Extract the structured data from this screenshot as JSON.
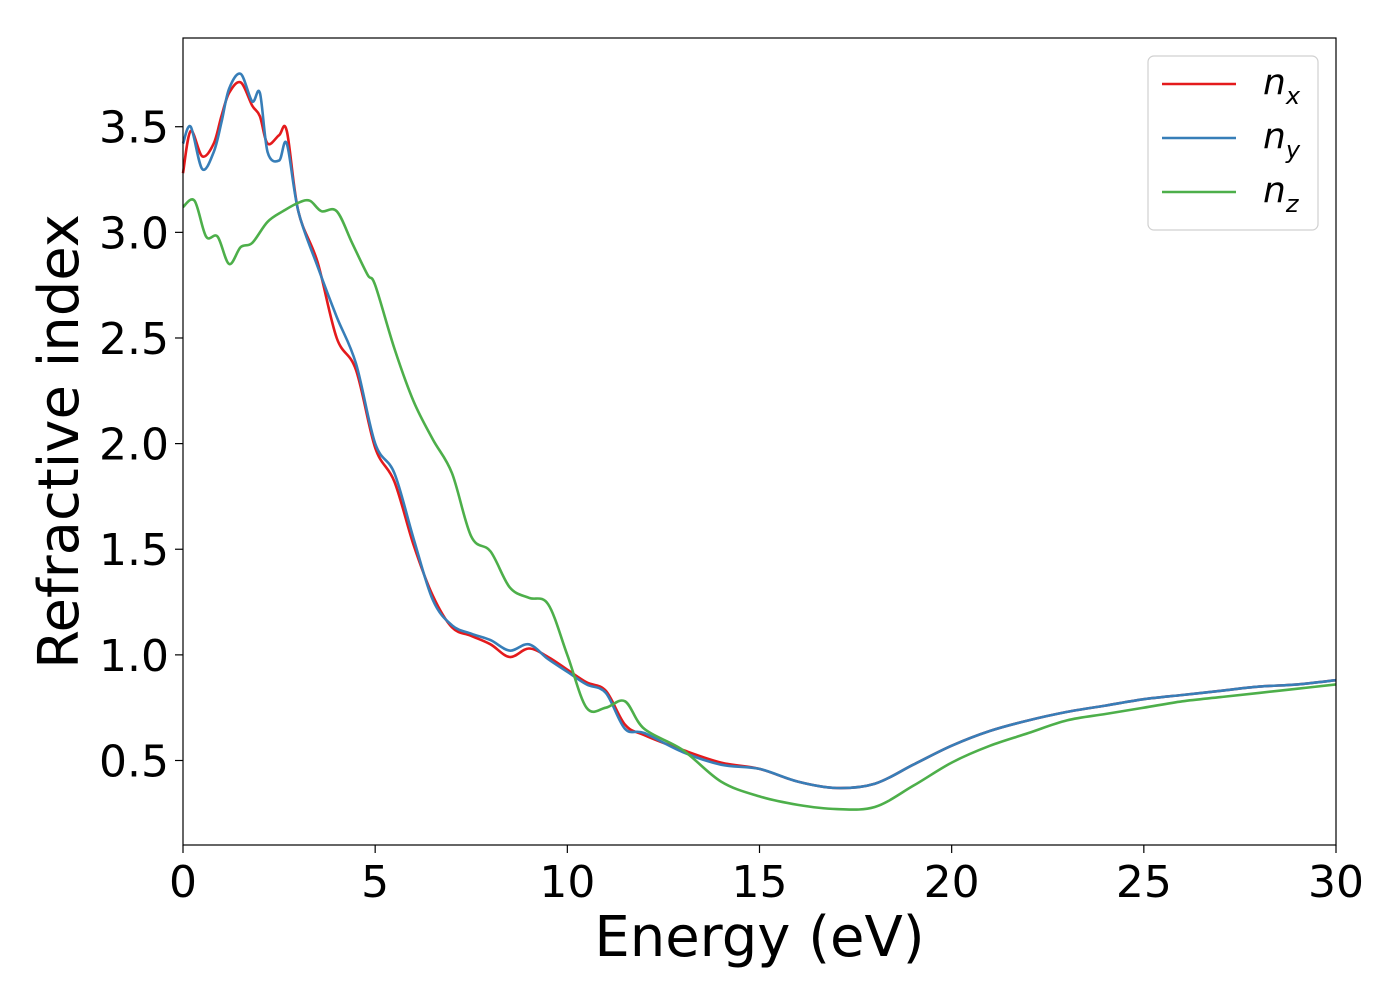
{
  "chart_data": {
    "type": "line",
    "xlabel": "Energy (eV)",
    "ylabel": "Refractive index",
    "xlim": [
      0,
      30
    ],
    "ylim": [
      0.1,
      3.92
    ],
    "xticks": [
      "0",
      "5",
      "10",
      "15",
      "20",
      "25",
      "30"
    ],
    "yticks": [
      "0.5",
      "1.0",
      "1.5",
      "2.0",
      "2.5",
      "3.0",
      "3.5"
    ],
    "grid": false,
    "legend_position": "top-right",
    "series": [
      {
        "name": "n",
        "sub": "x",
        "color": "#e41a1c",
        "x": [
          0,
          0.2,
          0.5,
          0.8,
          1.0,
          1.2,
          1.5,
          1.8,
          2.0,
          2.2,
          2.5,
          2.7,
          3.0,
          3.5,
          4.0,
          4.5,
          5.0,
          5.5,
          6.0,
          6.5,
          7.0,
          7.5,
          8.0,
          8.5,
          9.0,
          9.5,
          10.0,
          10.5,
          11.0,
          11.5,
          12.0,
          13.0,
          14.0,
          15.0,
          16.0,
          17.0,
          18.0,
          19.0,
          20.0,
          21.0,
          22.0,
          23.0,
          24.0,
          25.0,
          26.0,
          27.0,
          28.0,
          29.0,
          30.0
        ],
        "y": [
          3.28,
          3.48,
          3.36,
          3.42,
          3.55,
          3.66,
          3.71,
          3.6,
          3.55,
          3.42,
          3.46,
          3.48,
          3.1,
          2.86,
          2.5,
          2.35,
          1.98,
          1.82,
          1.52,
          1.28,
          1.13,
          1.09,
          1.05,
          0.99,
          1.03,
          0.99,
          0.93,
          0.87,
          0.83,
          0.67,
          0.62,
          0.55,
          0.49,
          0.46,
          0.4,
          0.37,
          0.39,
          0.48,
          0.57,
          0.64,
          0.69,
          0.73,
          0.76,
          0.79,
          0.81,
          0.83,
          0.85,
          0.86,
          0.88
        ]
      },
      {
        "name": "n",
        "sub": "y",
        "color": "#377eb8",
        "x": [
          0,
          0.2,
          0.5,
          0.8,
          1.0,
          1.2,
          1.5,
          1.8,
          2.0,
          2.2,
          2.5,
          2.7,
          3.0,
          3.5,
          4.0,
          4.5,
          5.0,
          5.5,
          6.0,
          6.5,
          7.0,
          7.5,
          8.0,
          8.5,
          9.0,
          9.5,
          10.0,
          10.5,
          11.0,
          11.5,
          12.0,
          13.0,
          14.0,
          15.0,
          16.0,
          17.0,
          18.0,
          19.0,
          20.0,
          21.0,
          22.0,
          23.0,
          24.0,
          25.0,
          26.0,
          27.0,
          28.0,
          29.0,
          30.0
        ],
        "y": [
          3.42,
          3.5,
          3.3,
          3.38,
          3.52,
          3.68,
          3.75,
          3.62,
          3.66,
          3.38,
          3.34,
          3.42,
          3.1,
          2.84,
          2.6,
          2.38,
          2.0,
          1.86,
          1.55,
          1.26,
          1.14,
          1.1,
          1.07,
          1.02,
          1.05,
          0.98,
          0.92,
          0.86,
          0.82,
          0.65,
          0.63,
          0.54,
          0.48,
          0.46,
          0.4,
          0.37,
          0.39,
          0.48,
          0.57,
          0.64,
          0.69,
          0.73,
          0.76,
          0.79,
          0.81,
          0.83,
          0.85,
          0.86,
          0.88
        ]
      },
      {
        "name": "n",
        "sub": "z",
        "color": "#4daf4a",
        "x": [
          0,
          0.3,
          0.6,
          0.9,
          1.2,
          1.5,
          1.8,
          2.2,
          2.6,
          3.0,
          3.3,
          3.6,
          4.0,
          4.4,
          4.8,
          5.0,
          5.5,
          6.0,
          6.5,
          7.0,
          7.5,
          8.0,
          8.5,
          9.0,
          9.5,
          10.0,
          10.5,
          11.0,
          11.5,
          12.0,
          13.0,
          14.0,
          15.0,
          16.0,
          17.0,
          18.0,
          19.0,
          20.0,
          21.0,
          22.0,
          23.0,
          24.0,
          25.0,
          26.0,
          27.0,
          28.0,
          29.0,
          30.0
        ],
        "y": [
          3.12,
          3.15,
          2.98,
          2.98,
          2.85,
          2.93,
          2.95,
          3.05,
          3.1,
          3.14,
          3.15,
          3.1,
          3.1,
          2.95,
          2.8,
          2.75,
          2.45,
          2.2,
          2.02,
          1.86,
          1.56,
          1.49,
          1.32,
          1.27,
          1.24,
          1.0,
          0.75,
          0.75,
          0.78,
          0.65,
          0.55,
          0.4,
          0.33,
          0.29,
          0.27,
          0.28,
          0.38,
          0.49,
          0.57,
          0.63,
          0.69,
          0.72,
          0.75,
          0.78,
          0.8,
          0.82,
          0.84,
          0.86
        ]
      }
    ]
  }
}
